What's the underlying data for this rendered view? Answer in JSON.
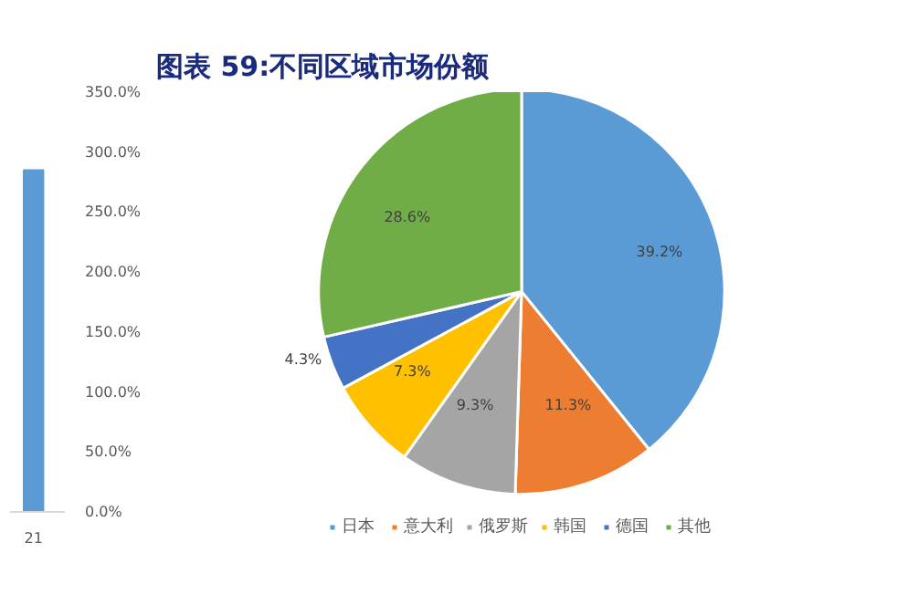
{
  "chart_data": [
    {
      "type": "bar",
      "categories": [
        "21"
      ],
      "values": [
        285
      ],
      "color": "#5b9bd5",
      "ylim": [
        0,
        350
      ],
      "yticks": [
        {
          "value": 0,
          "label": "0.0%"
        },
        {
          "value": 50,
          "label": "50.0%"
        },
        {
          "value": 100,
          "label": "100.0%"
        },
        {
          "value": 150,
          "label": "150.0%"
        },
        {
          "value": 200,
          "label": "200.0%"
        },
        {
          "value": 250,
          "label": "250.0%"
        },
        {
          "value": 300,
          "label": "300.0%"
        },
        {
          "value": 350,
          "label": "350.0%"
        }
      ],
      "grid": false
    },
    {
      "type": "pie",
      "title": "图表 59:不同区域市场份额",
      "categories": [
        "日本",
        "意大利",
        "俄罗斯",
        "韩国",
        "德国",
        "其他"
      ],
      "values": [
        39.2,
        11.3,
        9.3,
        7.3,
        4.3,
        28.6
      ],
      "colors": [
        "#5b9bd5",
        "#ed7d31",
        "#a5a5a5",
        "#ffc000",
        "#4472c4",
        "#70ad47"
      ],
      "value_labels": [
        "39.2%",
        "11.3%",
        "9.3%",
        "7.3%",
        "4.3%",
        "28.6%"
      ],
      "legend": "bottom"
    }
  ]
}
